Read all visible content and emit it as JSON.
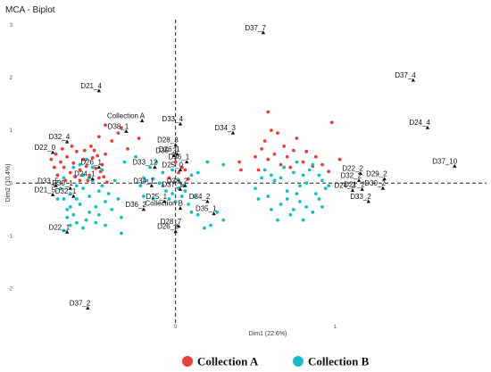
{
  "chart_data": {
    "type": "scatter",
    "title": "MCA - Biplot",
    "xlabel": "Dim1 (22.6%)",
    "ylabel": "Dim2 (10.4%)",
    "xlim": [
      -1.0,
      1.95
    ],
    "ylim": [
      -2.65,
      3.1
    ],
    "x_ticks": [
      0,
      1
    ],
    "y_ticks": [
      -2,
      -1,
      0,
      1,
      2,
      3
    ],
    "grid": false,
    "reference_lines": {
      "x": 0,
      "y": 0
    },
    "legend": {
      "position": "bottom",
      "entries": [
        {
          "label": "Collection A",
          "color": "#e8403a"
        },
        {
          "label": "Collection B",
          "color": "#18bfc6"
        }
      ]
    },
    "series": [
      {
        "name": "Collection A",
        "color": "#e8403a",
        "points": [
          [
            -0.78,
            0.45
          ],
          [
            -0.75,
            0.55
          ],
          [
            -0.72,
            0.4
          ],
          [
            -0.7,
            0.3
          ],
          [
            -0.68,
            0.5
          ],
          [
            -0.66,
            0.2
          ],
          [
            -0.64,
            0.38
          ],
          [
            -0.62,
            0.6
          ],
          [
            -0.6,
            0.25
          ],
          [
            -0.58,
            0.45
          ],
          [
            -0.56,
            0.32
          ],
          [
            -0.54,
            0.15
          ],
          [
            -0.52,
            0.48
          ],
          [
            -0.5,
            0.28
          ],
          [
            -0.48,
            0.1
          ],
          [
            -0.46,
            0.35
          ],
          [
            -0.44,
            0.55
          ],
          [
            -0.74,
            0.15
          ],
          [
            -0.71,
            0.65
          ],
          [
            -0.65,
            0.7
          ],
          [
            -0.6,
            0.05
          ],
          [
            -0.57,
            0.62
          ],
          [
            -0.53,
            0.7
          ],
          [
            -0.49,
            0.52
          ],
          [
            -0.47,
            0.22
          ],
          [
            -0.45,
            0.12
          ],
          [
            -0.43,
            0.02
          ],
          [
            -0.69,
            0.05
          ],
          [
            -0.76,
            0.3
          ],
          [
            -0.63,
            0.12
          ],
          [
            -0.55,
            0.05
          ],
          [
            -0.51,
            0.62
          ],
          [
            -0.4,
            0.8
          ],
          [
            -0.36,
            0.95
          ],
          [
            -0.34,
            1.05
          ],
          [
            -0.3,
            0.65
          ],
          [
            -0.23,
            0.85
          ],
          [
            -0.48,
            0.88
          ],
          [
            -0.44,
            1.1
          ],
          [
            0.0,
            0.4
          ],
          [
            0.02,
            0.2
          ],
          [
            0.04,
            0.3
          ],
          [
            0.06,
            0.25
          ],
          [
            0.08,
            0.08
          ],
          [
            -0.04,
            0.1
          ],
          [
            0.5,
            0.5
          ],
          [
            0.54,
            0.65
          ],
          [
            0.56,
            0.8
          ],
          [
            0.58,
            0.45
          ],
          [
            0.6,
            1.0
          ],
          [
            0.62,
            0.55
          ],
          [
            0.64,
            0.95
          ],
          [
            0.66,
            0.35
          ],
          [
            0.68,
            0.7
          ],
          [
            0.7,
            0.5
          ],
          [
            0.72,
            0.3
          ],
          [
            0.74,
            0.62
          ],
          [
            0.76,
            0.85
          ],
          [
            0.8,
            0.4
          ],
          [
            0.82,
            0.6
          ],
          [
            0.86,
            0.32
          ],
          [
            0.88,
            0.5
          ],
          [
            0.92,
            0.35
          ],
          [
            0.96,
            0.22
          ],
          [
            0.58,
            1.35
          ],
          [
            0.98,
            1.15
          ],
          [
            1.03,
            0.45
          ],
          [
            0.4,
            0.4
          ],
          [
            0.41,
            0.25
          ],
          [
            0.52,
            0.25
          ]
        ]
      },
      {
        "name": "Collection B",
        "color": "#18bfc6",
        "points": [
          [
            -0.7,
            0.1
          ],
          [
            -0.72,
            -0.1
          ],
          [
            -0.7,
            -0.3
          ],
          [
            -0.68,
            -0.5
          ],
          [
            -0.66,
            -0.2
          ],
          [
            -0.64,
            -0.6
          ],
          [
            -0.62,
            -0.05
          ],
          [
            -0.6,
            -0.4
          ],
          [
            -0.58,
            0.15
          ],
          [
            -0.56,
            -0.7
          ],
          [
            -0.54,
            -0.25
          ],
          [
            -0.52,
            0.05
          ],
          [
            -0.5,
            -0.45
          ],
          [
            -0.48,
            -0.15
          ],
          [
            -0.46,
            0.25
          ],
          [
            -0.44,
            -0.35
          ],
          [
            -0.62,
            -0.75
          ],
          [
            -0.66,
            -0.8
          ],
          [
            -0.68,
            -0.65
          ],
          [
            -0.58,
            -0.85
          ],
          [
            -0.54,
            -0.55
          ],
          [
            -0.5,
            -0.75
          ],
          [
            -0.74,
            -0.3
          ],
          [
            -0.64,
            0.3
          ],
          [
            -0.6,
            0.35
          ],
          [
            -0.56,
            0.45
          ],
          [
            -0.52,
            0.3
          ],
          [
            -0.48,
            -0.6
          ],
          [
            -0.46,
            -0.05
          ],
          [
            -0.44,
            -0.8
          ],
          [
            -0.7,
            -0.9
          ],
          [
            -0.66,
            -0.45
          ],
          [
            -0.62,
            -0.3
          ],
          [
            -0.58,
            -0.1
          ],
          [
            -0.54,
            0.1
          ],
          [
            -0.42,
            -0.2
          ],
          [
            -0.4,
            -0.5
          ],
          [
            -0.38,
            0.05
          ],
          [
            -0.36,
            -0.3
          ],
          [
            -0.34,
            -0.65
          ],
          [
            -0.32,
            0.4
          ],
          [
            -0.34,
            -0.95
          ],
          [
            -0.22,
            -0.05
          ],
          [
            -0.2,
            0.1
          ],
          [
            -0.18,
            0.05
          ],
          [
            -0.14,
            0.08
          ],
          [
            -0.1,
            0.0
          ],
          [
            -0.08,
            -0.05
          ],
          [
            -0.06,
            -0.15
          ],
          [
            -0.04,
            -0.3
          ],
          [
            -0.02,
            -0.2
          ],
          [
            0.0,
            -0.35
          ],
          [
            0.02,
            -0.1
          ],
          [
            0.04,
            -0.25
          ],
          [
            0.06,
            -0.15
          ],
          [
            0.08,
            -0.4
          ],
          [
            0.1,
            -0.55
          ],
          [
            0.12,
            -0.25
          ],
          [
            0.14,
            -0.6
          ],
          [
            0.18,
            -0.85
          ],
          [
            0.22,
            -0.8
          ],
          [
            0.26,
            -0.55
          ],
          [
            0.3,
            -0.7
          ],
          [
            -0.16,
            0.3
          ],
          [
            -0.12,
            0.4
          ],
          [
            -0.08,
            0.2
          ],
          [
            -0.25,
            0.5
          ],
          [
            -0.2,
            -0.25
          ],
          [
            -0.14,
            -0.3
          ],
          [
            -0.02,
            0.25
          ],
          [
            0.02,
            0.05
          ],
          [
            0.05,
            -0.05
          ],
          [
            0.1,
            0.15
          ],
          [
            0.14,
            0.2
          ],
          [
            0.2,
            0.4
          ],
          [
            0.3,
            0.35
          ],
          [
            0.5,
            -0.1
          ],
          [
            0.54,
            0.1
          ],
          [
            0.58,
            -0.25
          ],
          [
            0.62,
            0.05
          ],
          [
            0.66,
            -0.4
          ],
          [
            0.7,
            -0.15
          ],
          [
            0.74,
            0.2
          ],
          [
            0.78,
            -0.35
          ],
          [
            0.82,
            0.0
          ],
          [
            0.86,
            -0.55
          ],
          [
            0.88,
            -0.2
          ],
          [
            0.9,
            0.15
          ],
          [
            0.92,
            -0.45
          ],
          [
            0.94,
            -0.1
          ],
          [
            0.6,
            -0.5
          ],
          [
            0.68,
            0.3
          ],
          [
            0.72,
            -0.6
          ],
          [
            0.76,
            0.4
          ],
          [
            0.8,
            -0.7
          ],
          [
            0.84,
            0.25
          ],
          [
            0.64,
            -0.7
          ],
          [
            0.56,
            0.25
          ],
          [
            0.96,
            -0.05
          ],
          [
            0.7,
            -0.3
          ],
          [
            0.74,
            -0.5
          ],
          [
            0.78,
            -0.05
          ],
          [
            0.82,
            -0.45
          ],
          [
            0.86,
            0.35
          ],
          [
            0.9,
            -0.3
          ],
          [
            0.52,
            -0.3
          ],
          [
            0.66,
            0.1
          ],
          [
            0.8,
            0.15
          ],
          [
            0.92,
            0.05
          ],
          [
            0.76,
            -0.2
          ],
          [
            0.6,
            0.15
          ]
        ]
      }
    ],
    "variables": [
      {
        "label": "D37_7",
        "x": 0.55,
        "y": 2.85
      },
      {
        "label": "D37_4",
        "x": 1.49,
        "y": 1.95
      },
      {
        "label": "D21_4",
        "x": -0.48,
        "y": 1.75
      },
      {
        "label": "Collection A",
        "x": -0.21,
        "y": 1.18
      },
      {
        "label": "D33_4",
        "x": 0.03,
        "y": 1.12
      },
      {
        "label": "D38_1",
        "x": -0.31,
        "y": 0.98
      },
      {
        "label": "D34_3",
        "x": 0.36,
        "y": 0.95
      },
      {
        "label": "D32_4",
        "x": -0.68,
        "y": 0.78
      },
      {
        "label": "D24_4",
        "x": 1.58,
        "y": 1.05
      },
      {
        "label": "D28_3",
        "x": 0.0,
        "y": 0.72
      },
      {
        "label": "D22_0",
        "x": -0.77,
        "y": 0.58
      },
      {
        "label": "D35_3",
        "x": -0.01,
        "y": 0.52
      },
      {
        "label": "D26_1",
        "x": 0.01,
        "y": 0.55
      },
      {
        "label": "D37_10",
        "x": 1.75,
        "y": 0.32
      },
      {
        "label": "D36_1",
        "x": 0.07,
        "y": 0.4
      },
      {
        "label": "D33_12",
        "x": -0.13,
        "y": 0.3
      },
      {
        "label": "D26_1",
        "x": -0.48,
        "y": 0.3
      },
      {
        "label": "D25_0",
        "x": 0.03,
        "y": 0.25
      },
      {
        "label": "D22_2",
        "x": 1.16,
        "y": 0.18
      },
      {
        "label": "D24_1",
        "x": -0.52,
        "y": 0.08
      },
      {
        "label": "D29_2",
        "x": 1.31,
        "y": 0.08
      },
      {
        "label": "D32_2",
        "x": 1.15,
        "y": 0.05
      },
      {
        "label": "D33_5",
        "x": -0.75,
        "y": -0.05
      },
      {
        "label": "D34_1",
        "x": -0.15,
        "y": -0.05
      },
      {
        "label": "D30_1",
        "x": -0.66,
        "y": -0.1
      },
      {
        "label": "D38_2",
        "x": 0.06,
        "y": -0.05
      },
      {
        "label": "D37_1",
        "x": 0.03,
        "y": -0.12
      },
      {
        "label": "D30_2",
        "x": 1.3,
        "y": -0.1
      },
      {
        "label": "D21_2",
        "x": 1.17,
        "y": -0.12
      },
      {
        "label": "D24_2",
        "x": 1.11,
        "y": -0.14
      },
      {
        "label": "D21_5",
        "x": -0.77,
        "y": -0.22
      },
      {
        "label": "D32_1",
        "x": -0.64,
        "y": -0.25
      },
      {
        "label": "D34_2",
        "x": 0.2,
        "y": -0.35
      },
      {
        "label": "D25_1",
        "x": -0.07,
        "y": -0.35
      },
      {
        "label": "D33_2",
        "x": 1.21,
        "y": -0.35
      },
      {
        "label": "D36_2",
        "x": -0.2,
        "y": -0.5
      },
      {
        "label": "Collection B",
        "x": 0.03,
        "y": -0.48
      },
      {
        "label": "D35_1",
        "x": 0.24,
        "y": -0.58
      },
      {
        "label": "D28_7",
        "x": 0.02,
        "y": -0.82
      },
      {
        "label": "D22_1",
        "x": -0.68,
        "y": -0.93
      },
      {
        "label": "D26_2",
        "x": 0.0,
        "y": -0.92
      },
      {
        "label": "D37_2",
        "x": -0.55,
        "y": -2.37
      }
    ]
  }
}
